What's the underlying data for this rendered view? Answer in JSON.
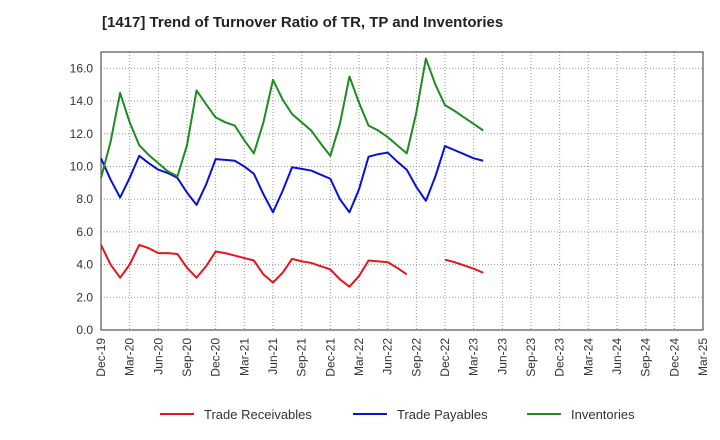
{
  "chart_data": {
    "type": "line",
    "title": "[1417]  Trend of Turnover Ratio of TR, TP and Inventories",
    "xlabel": "",
    "ylabel": "",
    "ylim": [
      0,
      17
    ],
    "y_ticks": [
      "0.0",
      "2.0",
      "4.0",
      "6.0",
      "8.0",
      "10.0",
      "12.0",
      "14.0",
      "16.0"
    ],
    "x_tick_labels": [
      "Dec-19",
      "Mar-20",
      "Jun-20",
      "Sep-20",
      "Dec-20",
      "Mar-21",
      "Jun-21",
      "Sep-21",
      "Dec-21",
      "Mar-22",
      "Jun-22",
      "Sep-22",
      "Dec-22",
      "Mar-23",
      "Jun-23",
      "Sep-23",
      "Dec-23",
      "Mar-24",
      "Jun-24",
      "Sep-24",
      "Dec-24",
      "Mar-25"
    ],
    "grid": true,
    "legend_position": "bottom",
    "series": [
      {
        "name": "Trade Receivables",
        "color": "#e8141d",
        "values": [
          5.2,
          4.0,
          3.2,
          4.0,
          5.2,
          5.0,
          4.7,
          4.7,
          4.65,
          3.8,
          3.2,
          3.9,
          4.8,
          4.7,
          4.55,
          4.4,
          4.25,
          3.4,
          2.9,
          3.5,
          4.35,
          4.2,
          4.1,
          3.9,
          3.7,
          3.1,
          2.65,
          3.3,
          4.25,
          4.2,
          4.15,
          3.8,
          3.4,
          null,
          null,
          null,
          4.3,
          4.15,
          3.95,
          3.75,
          3.5
        ]
      },
      {
        "name": "Trade Payables",
        "color": "#0a10d8",
        "values": [
          10.5,
          9.2,
          8.1,
          9.3,
          10.65,
          10.2,
          9.8,
          9.6,
          9.3,
          8.4,
          7.65,
          8.9,
          10.45,
          10.4,
          10.35,
          10.0,
          9.55,
          8.3,
          7.2,
          8.5,
          9.95,
          9.85,
          9.75,
          9.5,
          9.25,
          8.0,
          7.2,
          8.6,
          10.6,
          10.75,
          10.85,
          10.3,
          9.8,
          8.75,
          7.9,
          9.4,
          11.25,
          11.0,
          10.75,
          10.5,
          10.35
        ]
      },
      {
        "name": "Inventories",
        "color": "#1f8b23",
        "values": [
          9.3,
          11.5,
          14.5,
          12.7,
          11.3,
          10.7,
          10.2,
          9.7,
          9.4,
          11.3,
          14.65,
          13.8,
          13.0,
          12.7,
          12.5,
          11.6,
          10.8,
          12.7,
          15.3,
          14.1,
          13.2,
          12.7,
          12.2,
          11.4,
          10.65,
          12.6,
          15.5,
          13.9,
          12.5,
          12.2,
          11.8,
          11.3,
          10.8,
          13.3,
          16.6,
          15.0,
          13.75,
          13.4,
          13.0,
          12.6,
          12.2
        ]
      }
    ]
  }
}
